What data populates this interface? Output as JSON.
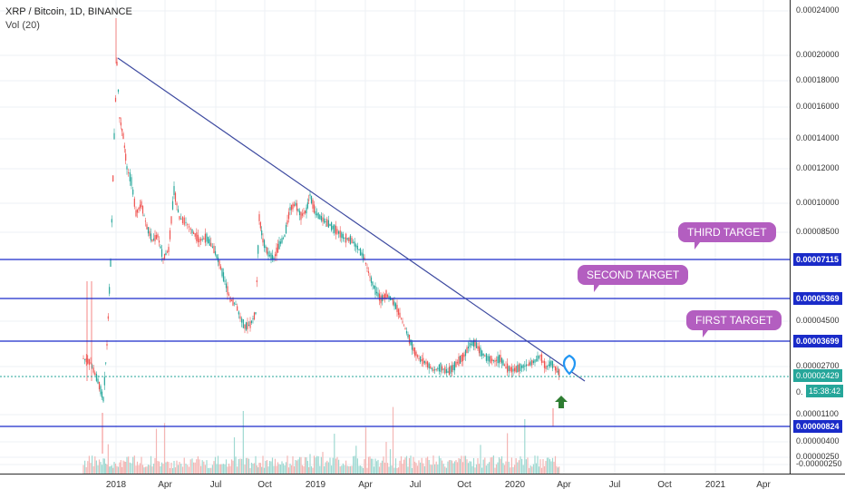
{
  "header": {
    "symbol_line": "XRP / Bitcoin, 1D, BINANCE",
    "volume_line": "Vol (20)"
  },
  "price_axis": {
    "ticks": [
      "0.00024000",
      "0.00020000",
      "0.00018000",
      "0.00016000",
      "0.00014000",
      "0.00012000",
      "0.00010000",
      "0.00008500",
      "0.00004500",
      "0.00002700",
      "0.00001100",
      "0.00000400",
      "0.00000250",
      "-0.00000250"
    ]
  },
  "levels": [
    {
      "label": "0.00007115"
    },
    {
      "label": "0.00005369"
    },
    {
      "label": "0.00003699"
    },
    {
      "label": "0.00000824"
    }
  ],
  "current": {
    "price": "0.00002429",
    "countdown": "15:38:42",
    "partial_tick": "0."
  },
  "time_axis": {
    "ticks": [
      "2018",
      "Apr",
      "Jul",
      "Oct",
      "2019",
      "Apr",
      "Jul",
      "Oct",
      "2020",
      "Apr",
      "Jul",
      "Oct",
      "2021",
      "Apr"
    ]
  },
  "annotations": {
    "third_target": "THIRD TARGET",
    "second_target": "SECOND TARGET",
    "first_target": "FIRST TARGET"
  },
  "colors": {
    "level_line": "#1a2bc9",
    "trend_line": "#3d4aa0",
    "up_candle": "#26a69a",
    "down_candle": "#ef5350",
    "target_bubble": "#b35ec0",
    "arrow": "#2e7d32",
    "marker": "#2196f3"
  },
  "icons": {
    "marker": "location-pin-icon",
    "arrow": "up-arrow-icon"
  }
}
